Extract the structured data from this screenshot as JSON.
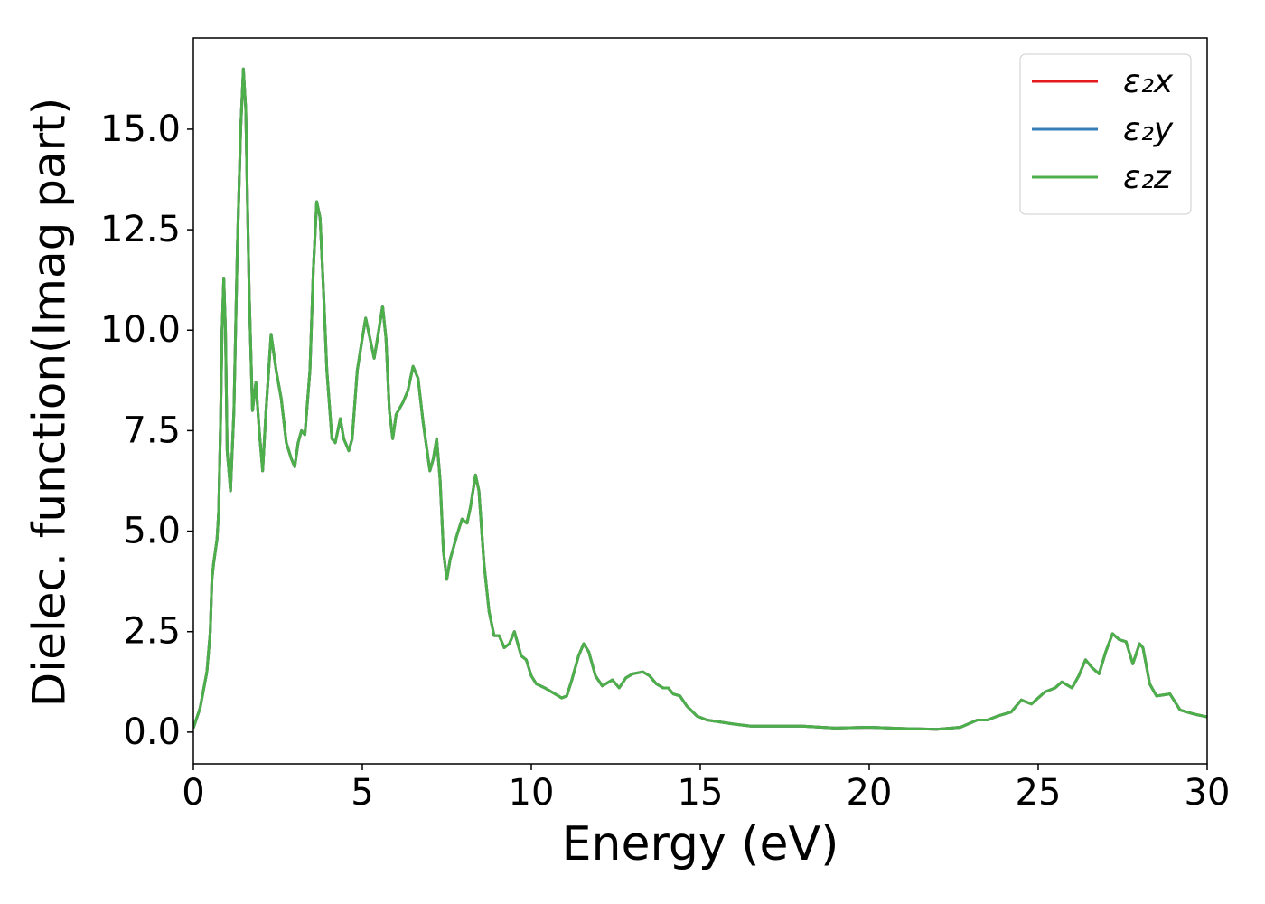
{
  "chart_data": {
    "type": "line",
    "xlabel": "Energy (eV)",
    "ylabel": "Dielec. function(Imag part)",
    "x": [
      0,
      0.2,
      0.4,
      0.5,
      0.55,
      0.6,
      0.7,
      0.75,
      0.8,
      0.85,
      0.9,
      0.95,
      1.0,
      1.1,
      1.2,
      1.3,
      1.4,
      1.48,
      1.55,
      1.65,
      1.75,
      1.85,
      1.95,
      2.05,
      2.15,
      2.3,
      2.45,
      2.6,
      2.75,
      2.9,
      3.0,
      3.1,
      3.2,
      3.3,
      3.45,
      3.55,
      3.65,
      3.75,
      3.85,
      3.95,
      4.1,
      4.2,
      4.35,
      4.45,
      4.6,
      4.7,
      4.85,
      5.0,
      5.1,
      5.2,
      5.35,
      5.45,
      5.6,
      5.7,
      5.8,
      5.9,
      6.0,
      6.2,
      6.35,
      6.5,
      6.65,
      6.8,
      7.0,
      7.1,
      7.2,
      7.3,
      7.4,
      7.5,
      7.6,
      7.8,
      7.95,
      8.1,
      8.2,
      8.35,
      8.45,
      8.6,
      8.75,
      8.9,
      9.05,
      9.2,
      9.35,
      9.5,
      9.6,
      9.7,
      9.85,
      10.0,
      10.15,
      10.4,
      10.7,
      10.9,
      11.05,
      11.2,
      11.4,
      11.55,
      11.7,
      11.9,
      12.1,
      12.4,
      12.6,
      12.8,
      13.0,
      13.3,
      13.5,
      13.7,
      13.9,
      14.05,
      14.2,
      14.4,
      14.6,
      14.9,
      15.2,
      15.6,
      16,
      16.5,
      17,
      18,
      19,
      20,
      21,
      22,
      22.7,
      23.2,
      23.5,
      23.8,
      24.2,
      24.5,
      24.8,
      25.2,
      25.5,
      25.7,
      26.0,
      26.2,
      26.4,
      26.6,
      26.8,
      27.0,
      27.2,
      27.4,
      27.6,
      27.8,
      28.0,
      28.1,
      28.3,
      28.5,
      28.9,
      29.2,
      29.6,
      30
    ],
    "series": [
      {
        "name": "ε₂x",
        "color": "#e41a1c",
        "values": [
          0.1,
          0.6,
          1.5,
          2.5,
          3.8,
          4.2,
          4.8,
          5.5,
          7.5,
          10,
          11.3,
          10,
          7,
          6.0,
          8,
          12,
          15,
          16.5,
          15.5,
          11,
          8.0,
          8.7,
          7.5,
          6.5,
          8,
          9.9,
          9,
          8.3,
          7.2,
          6.8,
          6.6,
          7.2,
          7.5,
          7.4,
          9,
          11.5,
          13.2,
          12.8,
          11,
          9,
          7.3,
          7.2,
          7.8,
          7.3,
          7.0,
          7.3,
          9.0,
          9.8,
          10.3,
          9.9,
          9.3,
          9.8,
          10.6,
          9.8,
          8,
          7.3,
          7.9,
          8.2,
          8.5,
          9.1,
          8.8,
          7.7,
          6.5,
          6.8,
          7.3,
          6.3,
          4.5,
          3.8,
          4.3,
          4.9,
          5.3,
          5.2,
          5.6,
          6.4,
          6.0,
          4.2,
          3.0,
          2.4,
          2.4,
          2.1,
          2.2,
          2.5,
          2.2,
          1.9,
          1.8,
          1.4,
          1.2,
          1.1,
          0.95,
          0.85,
          0.9,
          1.3,
          1.9,
          2.2,
          2.0,
          1.4,
          1.15,
          1.3,
          1.1,
          1.35,
          1.45,
          1.5,
          1.4,
          1.2,
          1.1,
          1.1,
          0.95,
          0.9,
          0.65,
          0.4,
          0.3,
          0.25,
          0.2,
          0.15,
          0.15,
          0.15,
          0.1,
          0.12,
          0.09,
          0.07,
          0.12,
          0.3,
          0.3,
          0.4,
          0.5,
          0.8,
          0.7,
          1.0,
          1.1,
          1.25,
          1.1,
          1.4,
          1.8,
          1.6,
          1.45,
          2.0,
          2.45,
          2.3,
          2.25,
          1.7,
          2.2,
          2.1,
          1.2,
          0.9,
          0.95,
          0.55,
          0.45,
          0.38
        ]
      },
      {
        "name": "ε₂y",
        "color": "#377eb8",
        "values": [
          0.1,
          0.6,
          1.5,
          2.5,
          3.8,
          4.2,
          4.8,
          5.5,
          7.5,
          10,
          11.3,
          10,
          7,
          6.0,
          8,
          12,
          15,
          16.5,
          15.5,
          11,
          8.0,
          8.7,
          7.5,
          6.5,
          8,
          9.9,
          9,
          8.3,
          7.2,
          6.8,
          6.6,
          7.2,
          7.5,
          7.4,
          9,
          11.5,
          13.2,
          12.8,
          11,
          9,
          7.3,
          7.2,
          7.8,
          7.3,
          7.0,
          7.3,
          9.0,
          9.8,
          10.3,
          9.9,
          9.3,
          9.8,
          10.6,
          9.8,
          8,
          7.3,
          7.9,
          8.2,
          8.5,
          9.1,
          8.8,
          7.7,
          6.5,
          6.8,
          7.3,
          6.3,
          4.5,
          3.8,
          4.3,
          4.9,
          5.3,
          5.2,
          5.6,
          6.4,
          6.0,
          4.2,
          3.0,
          2.4,
          2.4,
          2.1,
          2.2,
          2.5,
          2.2,
          1.9,
          1.8,
          1.4,
          1.2,
          1.1,
          0.95,
          0.85,
          0.9,
          1.3,
          1.9,
          2.2,
          2.0,
          1.4,
          1.15,
          1.3,
          1.1,
          1.35,
          1.45,
          1.5,
          1.4,
          1.2,
          1.1,
          1.1,
          0.95,
          0.9,
          0.65,
          0.4,
          0.3,
          0.25,
          0.2,
          0.15,
          0.15,
          0.15,
          0.1,
          0.12,
          0.09,
          0.07,
          0.12,
          0.3,
          0.3,
          0.4,
          0.5,
          0.8,
          0.7,
          1.0,
          1.1,
          1.25,
          1.1,
          1.4,
          1.8,
          1.6,
          1.45,
          2.0,
          2.45,
          2.3,
          2.25,
          1.7,
          2.2,
          2.1,
          1.2,
          0.9,
          0.95,
          0.55,
          0.45,
          0.38
        ]
      },
      {
        "name": "ε₂z",
        "color": "#4daf4a",
        "values": [
          0.1,
          0.6,
          1.5,
          2.5,
          3.8,
          4.2,
          4.8,
          5.5,
          7.5,
          10,
          11.3,
          10,
          7,
          6.0,
          8,
          12,
          15,
          16.5,
          15.5,
          11,
          8.0,
          8.7,
          7.5,
          6.5,
          8,
          9.9,
          9,
          8.3,
          7.2,
          6.8,
          6.6,
          7.2,
          7.5,
          7.4,
          9,
          11.5,
          13.2,
          12.8,
          11,
          9,
          7.3,
          7.2,
          7.8,
          7.3,
          7.0,
          7.3,
          9.0,
          9.8,
          10.3,
          9.9,
          9.3,
          9.8,
          10.6,
          9.8,
          8,
          7.3,
          7.9,
          8.2,
          8.5,
          9.1,
          8.8,
          7.7,
          6.5,
          6.8,
          7.3,
          6.3,
          4.5,
          3.8,
          4.3,
          4.9,
          5.3,
          5.2,
          5.6,
          6.4,
          6.0,
          4.2,
          3.0,
          2.4,
          2.4,
          2.1,
          2.2,
          2.5,
          2.2,
          1.9,
          1.8,
          1.4,
          1.2,
          1.1,
          0.95,
          0.85,
          0.9,
          1.3,
          1.9,
          2.2,
          2.0,
          1.4,
          1.15,
          1.3,
          1.1,
          1.35,
          1.45,
          1.5,
          1.4,
          1.2,
          1.1,
          1.1,
          0.95,
          0.9,
          0.65,
          0.4,
          0.3,
          0.25,
          0.2,
          0.15,
          0.15,
          0.15,
          0.1,
          0.12,
          0.09,
          0.07,
          0.12,
          0.3,
          0.3,
          0.4,
          0.5,
          0.8,
          0.7,
          1.0,
          1.1,
          1.25,
          1.1,
          1.4,
          1.8,
          1.6,
          1.45,
          2.0,
          2.45,
          2.3,
          2.25,
          1.7,
          2.2,
          2.1,
          1.2,
          0.9,
          0.95,
          0.55,
          0.45,
          0.38
        ]
      }
    ],
    "xlim": [
      0,
      30
    ],
    "xticks": [
      0,
      5,
      10,
      15,
      20,
      25,
      30
    ],
    "ylim": [
      -0.79,
      17.27
    ],
    "yticks": [
      {
        "value": 0,
        "label": "0.0"
      },
      2.5,
      {
        "value": 5,
        "label": "5.0"
      },
      7.5,
      {
        "value": 10,
        "label": "10.0"
      },
      12.5,
      {
        "value": 15,
        "label": "15.0"
      }
    ],
    "grid": false,
    "legend": "upper right"
  }
}
